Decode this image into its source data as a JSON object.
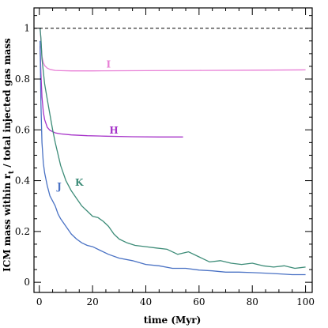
{
  "chart_data": {
    "type": "line",
    "xlabel": "time (Myr)",
    "ylabel_main": "ICM mass within r",
    "ylabel_sub": "t",
    "ylabel_rest": " / total injected gas mass",
    "xlim": [
      -2,
      102.5
    ],
    "ylim": [
      -0.04,
      1.08
    ],
    "x_ticks": [
      0,
      20,
      40,
      60,
      80,
      100
    ],
    "y_ticks": [
      0,
      0.2,
      0.4,
      0.6,
      0.8,
      1
    ],
    "x_tick_labels": [
      "0",
      "20",
      "40",
      "60",
      "80",
      "100"
    ],
    "y_tick_labels": [
      "0",
      "0.2",
      "0.4",
      "0.6",
      "0.8",
      "1"
    ],
    "reference_line": {
      "y": 1,
      "style": "dashed",
      "color": "#000000"
    },
    "series": [
      {
        "name": "I",
        "color": "#e87fd6",
        "x": [
          0.3,
          0.6,
          1.0,
          1.5,
          2.0,
          3.0,
          4.0,
          6.0,
          8.0,
          12.0,
          20.0,
          40.0,
          60.0,
          80.0,
          100.0
        ],
        "y": [
          1.0,
          0.95,
          0.89,
          0.865,
          0.853,
          0.843,
          0.838,
          0.834,
          0.833,
          0.832,
          0.832,
          0.833,
          0.834,
          0.835,
          0.836
        ]
      },
      {
        "name": "H",
        "color": "#a633c9",
        "x": [
          0.3,
          0.6,
          1.0,
          1.5,
          2.0,
          3.0,
          4.0,
          6.0,
          8.0,
          12.0,
          18.0,
          25.0,
          35.0,
          45.0,
          54.0
        ],
        "y": [
          0.93,
          0.82,
          0.73,
          0.67,
          0.64,
          0.61,
          0.598,
          0.588,
          0.584,
          0.58,
          0.577,
          0.575,
          0.573,
          0.572,
          0.572
        ]
      },
      {
        "name": "K",
        "color": "#3d8c78",
        "x": [
          0.3,
          0.6,
          1.0,
          2.0,
          3.0,
          4.0,
          5.0,
          6.0,
          8.0,
          10.0,
          12.0,
          14.0,
          16.0,
          18.0,
          20.0,
          22.0,
          24.0,
          26.0,
          28.0,
          30.0,
          33.0,
          36.0,
          40.0,
          44.0,
          48.0,
          52.0,
          56.0,
          60.0,
          64.0,
          68.0,
          72.0,
          76.0,
          80.0,
          84.0,
          88.0,
          92.0,
          96.0,
          100.0
        ],
        "y": [
          1.0,
          0.96,
          0.88,
          0.78,
          0.72,
          0.66,
          0.6,
          0.55,
          0.46,
          0.4,
          0.36,
          0.33,
          0.3,
          0.28,
          0.26,
          0.255,
          0.24,
          0.22,
          0.19,
          0.17,
          0.155,
          0.145,
          0.14,
          0.135,
          0.13,
          0.11,
          0.12,
          0.1,
          0.08,
          0.085,
          0.075,
          0.07,
          0.075,
          0.065,
          0.06,
          0.065,
          0.055,
          0.06
        ]
      },
      {
        "name": "J",
        "color": "#4a72c4",
        "x": [
          0.3,
          0.6,
          1.0,
          1.5,
          2.0,
          3.0,
          4.0,
          5.0,
          6.0,
          7.0,
          8.0,
          10.0,
          12.0,
          14.0,
          16.0,
          18.0,
          20.0,
          23.0,
          26.0,
          30.0,
          35.0,
          40.0,
          45.0,
          50.0,
          55.0,
          60.0,
          65.0,
          70.0,
          75.0,
          80.0,
          85.0,
          90.0,
          95.0,
          100.0
        ],
        "y": [
          0.95,
          0.7,
          0.55,
          0.47,
          0.43,
          0.38,
          0.34,
          0.32,
          0.3,
          0.27,
          0.25,
          0.22,
          0.19,
          0.17,
          0.155,
          0.145,
          0.14,
          0.125,
          0.11,
          0.095,
          0.085,
          0.07,
          0.065,
          0.055,
          0.055,
          0.048,
          0.045,
          0.04,
          0.04,
          0.038,
          0.036,
          0.033,
          0.03,
          0.03
        ]
      }
    ],
    "labels": [
      {
        "text": "I",
        "x": 26,
        "y": 0.845
      },
      {
        "text": "H",
        "x": 28,
        "y": 0.585
      },
      {
        "text": "K",
        "x": 15,
        "y": 0.38
      },
      {
        "text": "J",
        "x": 7.5,
        "y": 0.365
      }
    ]
  }
}
